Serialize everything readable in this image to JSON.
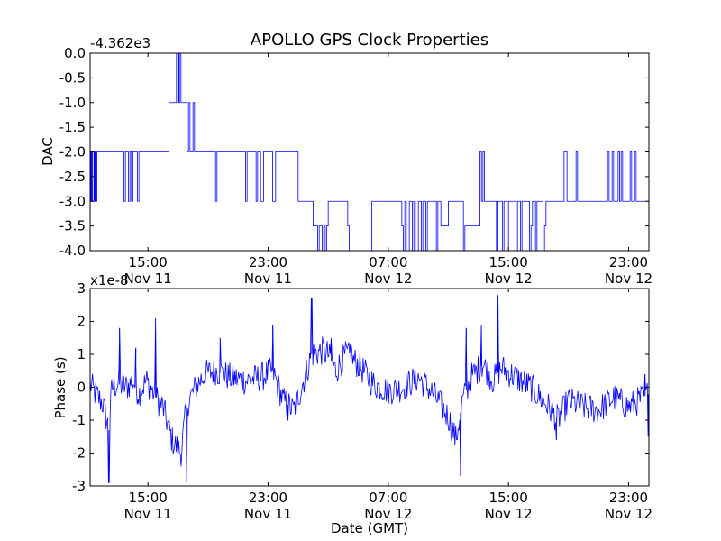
{
  "figure": {
    "title": "APOLLO GPS Clock Properties",
    "xlabel": "Date (GMT)",
    "series_color": "#0000ff"
  },
  "chart_data": [
    {
      "type": "line",
      "name": "dac",
      "title": "APOLLO GPS Clock Properties",
      "xlabel": "",
      "ylabel": "DAC",
      "y_offset_label": "-4.362e3",
      "x_units": "hours from Nov 11 00:00 GMT",
      "xlim": [
        11.15,
        48.35
      ],
      "ylim": [
        -4.0,
        0.0
      ],
      "x_ticks": [
        15,
        23,
        31,
        39,
        47
      ],
      "x_tick_labels": [
        [
          "15:00",
          "Nov 11"
        ],
        [
          "23:00",
          "Nov 11"
        ],
        [
          "07:00",
          "Nov 12"
        ],
        [
          "15:00",
          "Nov 12"
        ],
        [
          "23:00",
          "Nov 12"
        ]
      ],
      "y_ticks": [
        0.0,
        -0.5,
        -1.0,
        -1.5,
        -2.0,
        -2.5,
        -3.0,
        -3.5,
        -4.0
      ],
      "y_tick_labels": [
        "0.0",
        "-0.5",
        "-1.0",
        "-1.5",
        "-2.0",
        "-2.5",
        "-3.0",
        "-3.5",
        "-4.0"
      ],
      "segments": [
        {
          "x": 11.15,
          "y": -2
        },
        {
          "x": 11.2,
          "y": -3
        },
        {
          "x": 11.25,
          "y": -2
        },
        {
          "x": 11.3,
          "y": -3
        },
        {
          "x": 11.4,
          "y": -2
        },
        {
          "x": 11.45,
          "y": -3
        },
        {
          "x": 11.5,
          "y": -2
        },
        {
          "x": 11.55,
          "y": -3
        },
        {
          "x": 11.6,
          "y": -2
        },
        {
          "x": 13.4,
          "y": -3
        },
        {
          "x": 13.5,
          "y": -2
        },
        {
          "x": 13.7,
          "y": -3
        },
        {
          "x": 13.8,
          "y": -2
        },
        {
          "x": 13.9,
          "y": -3
        },
        {
          "x": 14.0,
          "y": -2
        },
        {
          "x": 14.3,
          "y": -3
        },
        {
          "x": 14.4,
          "y": -2
        },
        {
          "x": 16.4,
          "y": -1
        },
        {
          "x": 16.9,
          "y": 0
        },
        {
          "x": 17.05,
          "y": -1
        },
        {
          "x": 17.1,
          "y": 0
        },
        {
          "x": 17.2,
          "y": -1
        },
        {
          "x": 17.6,
          "y": -2
        },
        {
          "x": 17.7,
          "y": -1
        },
        {
          "x": 17.8,
          "y": -2
        },
        {
          "x": 18.0,
          "y": -1
        },
        {
          "x": 18.1,
          "y": -2
        },
        {
          "x": 19.5,
          "y": -3
        },
        {
          "x": 19.6,
          "y": -2
        },
        {
          "x": 21.5,
          "y": -3
        },
        {
          "x": 21.6,
          "y": -2
        },
        {
          "x": 22.2,
          "y": -3
        },
        {
          "x": 22.3,
          "y": -2
        },
        {
          "x": 22.5,
          "y": -3
        },
        {
          "x": 22.7,
          "y": -2
        },
        {
          "x": 23.3,
          "y": -3
        },
        {
          "x": 23.5,
          "y": -2
        },
        {
          "x": 25.0,
          "y": -3
        },
        {
          "x": 26.0,
          "y": -3.5
        },
        {
          "x": 26.3,
          "y": -4
        },
        {
          "x": 26.4,
          "y": -3.5
        },
        {
          "x": 26.6,
          "y": -4
        },
        {
          "x": 26.7,
          "y": -3.5
        },
        {
          "x": 26.8,
          "y": -4
        },
        {
          "x": 26.9,
          "y": -3.5
        },
        {
          "x": 27.0,
          "y": -3
        },
        {
          "x": 28.3,
          "y": -3.5
        },
        {
          "x": 28.4,
          "y": -4
        },
        {
          "x": 29.9,
          "y": -3
        },
        {
          "x": 31.9,
          "y": -3.5
        },
        {
          "x": 32.0,
          "y": -4
        },
        {
          "x": 32.1,
          "y": -3
        },
        {
          "x": 32.2,
          "y": -4
        },
        {
          "x": 32.4,
          "y": -3
        },
        {
          "x": 32.6,
          "y": -4
        },
        {
          "x": 32.7,
          "y": -3
        },
        {
          "x": 32.8,
          "y": -4
        },
        {
          "x": 33.0,
          "y": -3
        },
        {
          "x": 33.2,
          "y": -4
        },
        {
          "x": 33.3,
          "y": -3
        },
        {
          "x": 33.5,
          "y": -4
        },
        {
          "x": 33.6,
          "y": -3
        },
        {
          "x": 34.2,
          "y": -4
        },
        {
          "x": 34.3,
          "y": -3
        },
        {
          "x": 34.5,
          "y": -3.5
        },
        {
          "x": 35.0,
          "y": -3
        },
        {
          "x": 36.0,
          "y": -4
        },
        {
          "x": 36.1,
          "y": -3.5
        },
        {
          "x": 37.1,
          "y": -2
        },
        {
          "x": 37.2,
          "y": -3
        },
        {
          "x": 37.3,
          "y": -2
        },
        {
          "x": 37.4,
          "y": -3
        },
        {
          "x": 38.2,
          "y": -4
        },
        {
          "x": 38.3,
          "y": -3
        },
        {
          "x": 38.6,
          "y": -4
        },
        {
          "x": 38.7,
          "y": -3
        },
        {
          "x": 38.9,
          "y": -4
        },
        {
          "x": 39.0,
          "y": -3
        },
        {
          "x": 39.5,
          "y": -4
        },
        {
          "x": 39.6,
          "y": -3
        },
        {
          "x": 39.8,
          "y": -4
        },
        {
          "x": 39.9,
          "y": -3
        },
        {
          "x": 40.4,
          "y": -4
        },
        {
          "x": 40.5,
          "y": -3.5
        },
        {
          "x": 40.6,
          "y": -3
        },
        {
          "x": 40.8,
          "y": -4
        },
        {
          "x": 40.9,
          "y": -3
        },
        {
          "x": 41.3,
          "y": -4
        },
        {
          "x": 41.4,
          "y": -3.5
        },
        {
          "x": 41.5,
          "y": -3
        },
        {
          "x": 42.7,
          "y": -2
        },
        {
          "x": 42.9,
          "y": -3
        },
        {
          "x": 43.5,
          "y": -2
        },
        {
          "x": 43.6,
          "y": -3
        },
        {
          "x": 45.6,
          "y": -2
        },
        {
          "x": 45.7,
          "y": -3
        },
        {
          "x": 45.9,
          "y": -2
        },
        {
          "x": 46.0,
          "y": -3
        },
        {
          "x": 46.3,
          "y": -2
        },
        {
          "x": 46.4,
          "y": -3
        },
        {
          "x": 46.5,
          "y": -2
        },
        {
          "x": 46.6,
          "y": -3
        },
        {
          "x": 47.1,
          "y": -2
        },
        {
          "x": 47.2,
          "y": -3
        },
        {
          "x": 47.4,
          "y": -2
        },
        {
          "x": 47.5,
          "y": -3
        },
        {
          "x": 48.35,
          "y": -3
        }
      ]
    },
    {
      "type": "line",
      "name": "phase",
      "xlabel": "Date (GMT)",
      "ylabel": "Phase (s)",
      "y_scale_label": "x1e-8",
      "x_units": "hours from Nov 11 00:00 GMT",
      "xlim": [
        11.15,
        48.35
      ],
      "ylim": [
        -3,
        3
      ],
      "x_ticks": [
        15,
        23,
        31,
        39,
        47
      ],
      "x_tick_labels": [
        [
          "15:00",
          "Nov 11"
        ],
        [
          "23:00",
          "Nov 11"
        ],
        [
          "07:00",
          "Nov 12"
        ],
        [
          "15:00",
          "Nov 12"
        ],
        [
          "23:00",
          "Nov 12"
        ]
      ],
      "y_ticks": [
        3,
        2,
        1,
        0,
        -1,
        -2,
        -3
      ],
      "y_tick_labels": [
        "3",
        "2",
        "1",
        "0",
        "-1",
        "-2",
        "-3"
      ],
      "trend": [
        [
          11.15,
          0.1
        ],
        [
          11.5,
          -0.2
        ],
        [
          12.0,
          -0.5
        ],
        [
          12.4,
          -1.3
        ],
        [
          12.6,
          0.0
        ],
        [
          13.0,
          0.1
        ],
        [
          13.6,
          0.0
        ],
        [
          14.0,
          0.2
        ],
        [
          14.4,
          -0.2
        ],
        [
          14.9,
          0.2
        ],
        [
          15.5,
          -0.3
        ],
        [
          16.0,
          -0.6
        ],
        [
          16.6,
          -1.6
        ],
        [
          17.2,
          -2.0
        ],
        [
          17.6,
          -0.5
        ],
        [
          18.3,
          0.1
        ],
        [
          18.8,
          0.4
        ],
        [
          19.5,
          0.5
        ],
        [
          20.5,
          0.3
        ],
        [
          21.5,
          0.2
        ],
        [
          22.5,
          0.3
        ],
        [
          23.3,
          0.5
        ],
        [
          24.0,
          -0.4
        ],
        [
          24.7,
          -0.7
        ],
        [
          25.3,
          0.1
        ],
        [
          25.9,
          1.0
        ],
        [
          26.6,
          1.1
        ],
        [
          27.0,
          1.0
        ],
        [
          27.5,
          0.5
        ],
        [
          28.2,
          1.0
        ],
        [
          29.0,
          0.7
        ],
        [
          30.0,
          0.1
        ],
        [
          31.0,
          -0.1
        ],
        [
          32.0,
          0.0
        ],
        [
          33.0,
          0.3
        ],
        [
          34.0,
          -0.2
        ],
        [
          35.0,
          -0.9
        ],
        [
          35.5,
          -1.6
        ],
        [
          35.9,
          -0.5
        ],
        [
          36.5,
          0.3
        ],
        [
          37.3,
          0.7
        ],
        [
          38.0,
          0.2
        ],
        [
          38.5,
          0.6
        ],
        [
          39.5,
          0.3
        ],
        [
          40.5,
          0.0
        ],
        [
          41.5,
          -0.5
        ],
        [
          42.3,
          -1.0
        ],
        [
          43.0,
          -0.4
        ],
        [
          44.0,
          -0.6
        ],
        [
          45.0,
          -0.7
        ],
        [
          46.0,
          -0.3
        ],
        [
          47.0,
          -0.6
        ],
        [
          48.35,
          -0.2
        ]
      ],
      "spikes": [
        [
          12.4,
          -2.9
        ],
        [
          13.1,
          1.8
        ],
        [
          14.2,
          1.2
        ],
        [
          15.5,
          2.1
        ],
        [
          17.6,
          -2.9
        ],
        [
          19.8,
          1.5
        ],
        [
          23.3,
          1.9
        ],
        [
          24.3,
          -1.0
        ],
        [
          25.9,
          2.7
        ],
        [
          27.2,
          1.5
        ],
        [
          28.5,
          1.3
        ],
        [
          35.8,
          -2.7
        ],
        [
          36.2,
          1.8
        ],
        [
          37.2,
          1.9
        ],
        [
          38.3,
          2.8
        ],
        [
          42.2,
          -1.6
        ],
        [
          48.1,
          0.4
        ],
        [
          48.3,
          -1.5
        ]
      ],
      "noise_amplitude": 0.45,
      "samples": 700
    }
  ]
}
